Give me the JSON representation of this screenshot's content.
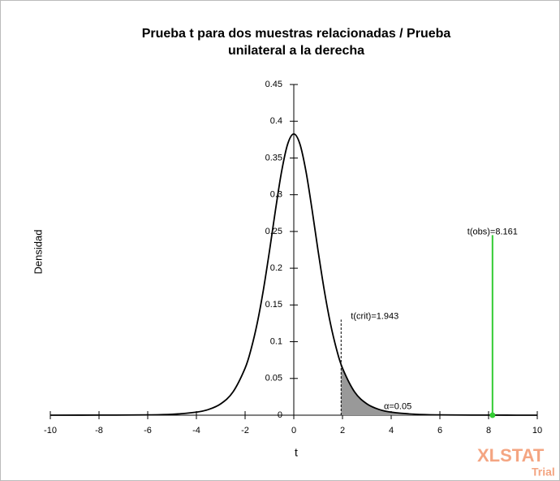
{
  "chart_data": {
    "type": "line",
    "title": [
      "Prueba t para dos muestras relacionadas / Prueba",
      "unilateral a la derecha"
    ],
    "x_label": "t",
    "y_label": "Densidad",
    "xlim": [
      -10,
      10
    ],
    "ylim": [
      0,
      0.45
    ],
    "xticks": [
      -10,
      -8,
      -6,
      -4,
      -2,
      0,
      2,
      4,
      6,
      8,
      10
    ],
    "yticks": [
      0,
      0.05,
      0.1,
      0.15,
      0.2,
      0.25,
      0.3,
      0.35,
      0.4,
      0.45
    ],
    "series": [
      {
        "name": "Densidad",
        "color": "#000000",
        "x": [
          -10,
          -8,
          -6,
          -5,
          -4,
          -3.5,
          -3,
          -2.5,
          -2,
          -1.75,
          -1.5,
          -1.25,
          -1,
          -0.75,
          -0.5,
          -0.25,
          0,
          0.25,
          0.5,
          0.75,
          1,
          1.25,
          1.5,
          1.75,
          2,
          2.5,
          3,
          3.5,
          4,
          5,
          6,
          8,
          10
        ],
        "values": [
          0.0,
          0.0001,
          0.0004,
          0.0012,
          0.0041,
          0.0078,
          0.0155,
          0.0315,
          0.064,
          0.0904,
          0.1255,
          0.1703,
          0.2231,
          0.2797,
          0.3318,
          0.3691,
          0.3827,
          0.3691,
          0.3318,
          0.2797,
          0.2231,
          0.1703,
          0.1255,
          0.0904,
          0.064,
          0.0315,
          0.0155,
          0.0078,
          0.0041,
          0.0012,
          0.0004,
          0.0001,
          0.0
        ]
      },
      {
        "name": "α",
        "color": "#999999",
        "fill": true,
        "x": [
          1.943,
          2,
          2.5,
          3,
          3.5,
          4,
          5,
          6,
          8,
          10
        ],
        "values": [
          0.0693,
          0.064,
          0.0315,
          0.0155,
          0.0078,
          0.0041,
          0.0012,
          0.0004,
          0.0001,
          0.0
        ]
      }
    ],
    "annotations": [
      {
        "text": "t(crit)=1.943",
        "x": 1.943,
        "y": 0.13,
        "color": "#000000",
        "dashed": true
      },
      {
        "text": "t(obs)=8.161",
        "x": 8.161,
        "y": 0.245,
        "color": "#33cc33",
        "dashed": false
      },
      {
        "text": "α=0.05",
        "x": 3.7,
        "y": 0.007
      }
    ],
    "watermark": [
      "XLSTAT",
      "Trial"
    ]
  }
}
